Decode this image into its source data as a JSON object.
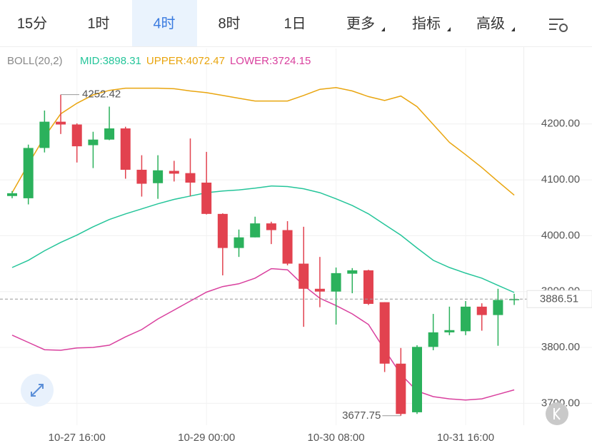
{
  "tabs": [
    "15分",
    "1时",
    "4时",
    "8时",
    "1日",
    "更多",
    "指标",
    "高级"
  ],
  "chart_data": {
    "type": "candlestick",
    "indicator": "BOLL(20,2)",
    "categories": [
      null,
      null,
      null,
      null,
      "10-27 16:00",
      null,
      null,
      null,
      null,
      null,
      null,
      null,
      "10-29 00:00",
      null,
      null,
      null,
      null,
      null,
      null,
      null,
      "10-30 08:00",
      null,
      null,
      null,
      null,
      null,
      null,
      null,
      "10-31 16:00",
      null,
      null,
      null
    ],
    "open": [
      4071,
      4067,
      4157,
      4204,
      4199,
      4162,
      4172,
      4192,
      4118,
      4094,
      4116,
      4112,
      4095,
      4039,
      3978,
      3997,
      4022,
      4010,
      3950,
      3905,
      3900,
      3932,
      3938,
      3881,
      3771,
      3684,
      3801,
      3827,
      3829,
      3873,
      3858,
      3885
    ],
    "high": [
      4080,
      4163,
      4224,
      4252.42,
      4201,
      4186,
      4231,
      4195,
      4144,
      4144,
      4134,
      4174,
      4150,
      4040,
      4011,
      4034,
      4025,
      4026,
      4016,
      3962,
      3943,
      3942,
      3939,
      3881,
      3799,
      3804,
      3860,
      3873,
      3883,
      3879,
      3905,
      3896
    ],
    "low": [
      4067,
      4056,
      4149,
      4182,
      4131,
      4121,
      4171,
      4102,
      4070,
      4066,
      4097,
      4071,
      4038,
      3929,
      3962,
      3997,
      3985,
      3947,
      3837,
      3872,
      3841,
      3897,
      3876,
      3756,
      3677.75,
      3681,
      3795,
      3822,
      3822,
      3830,
      3803,
      3876
    ],
    "close": [
      4076,
      4157,
      4204,
      4199,
      4160,
      4172,
      4192,
      4118,
      4093,
      4117,
      4111,
      4095,
      4039,
      3978,
      3997,
      4022,
      4010,
      3950,
      3905,
      3900,
      3933,
      3938,
      3878,
      3771,
      3681,
      3801,
      3827,
      3831,
      3873,
      3858,
      3885,
      3886.51
    ],
    "up_color": "#2bb15c",
    "down_color": "#e2424f",
    "series": [
      {
        "name": "MID:3898.31",
        "color": "#25c59a",
        "values": [
          3943,
          3956,
          3973,
          3988,
          4001,
          4016,
          4029,
          4039,
          4048,
          4057,
          4065,
          4071,
          4077,
          4080,
          4082,
          4085,
          4089,
          4088,
          4084,
          4077,
          4066,
          4054,
          4039,
          4020,
          4001,
          3978,
          3956,
          3943,
          3933,
          3924,
          3911,
          3898.31
        ]
      },
      {
        "name": "UPPER:4072.47",
        "color": "#e9a50f",
        "values": [
          4077,
          4128,
          4177,
          4218,
          4237,
          4252,
          4260,
          4264,
          4264,
          4264,
          4263,
          4259,
          4256,
          4251,
          4246,
          4241,
          4241,
          4241,
          4251,
          4262,
          4265,
          4259,
          4249,
          4242,
          4250,
          4231,
          4199,
          4167,
          4145,
          4122,
          4097,
          4072.47
        ]
      },
      {
        "name": "LOWER:3724.15",
        "color": "#d9409e",
        "values": [
          3822,
          3809,
          3796,
          3795,
          3799,
          3800,
          3804,
          3819,
          3832,
          3851,
          3867,
          3883,
          3899,
          3909,
          3914,
          3924,
          3941,
          3939,
          3911,
          3888,
          3875,
          3860,
          3841,
          3796,
          3752,
          3722,
          3712,
          3708,
          3706,
          3708,
          3716,
          3724.15
        ]
      }
    ],
    "ylim": [
      3666,
      4335
    ],
    "yticks": [
      {
        "value": 3700,
        "label": "3700.00"
      },
      {
        "value": 3800,
        "label": "3800.00"
      },
      {
        "value": 3900,
        "label": "3900.00"
      },
      {
        "value": 4000,
        "label": "4000.00"
      },
      {
        "value": 4100,
        "label": "4100.00"
      },
      {
        "value": 4200,
        "label": "4200.00"
      }
    ],
    "grid": true
  }
}
